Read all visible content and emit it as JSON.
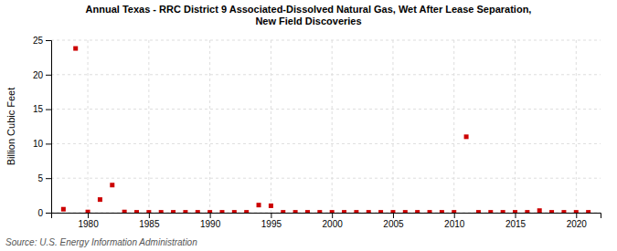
{
  "chart_data": {
    "type": "scatter",
    "title": "Annual Texas - RRC District 9 Associated-Dissolved Natural Gas, Wet After Lease Separation,\nNew Field Discoveries",
    "ylabel": "Billion Cubic Feet",
    "source": "Source: U.S. Energy Information Administration",
    "color": "#cc0000",
    "marker": "square",
    "grid": true,
    "x": [
      1978,
      1979,
      1980,
      1981,
      1982,
      1983,
      1984,
      1985,
      1986,
      1987,
      1988,
      1989,
      1990,
      1991,
      1992,
      1993,
      1994,
      1995,
      1996,
      1997,
      1998,
      1999,
      2000,
      2001,
      2002,
      2003,
      2004,
      2005,
      2006,
      2007,
      2008,
      2009,
      2010,
      2011,
      2012,
      2013,
      2014,
      2015,
      2016,
      2017,
      2018,
      2019,
      2020,
      2021
    ],
    "values": [
      0.5,
      23.8,
      0.1,
      1.9,
      4.0,
      0.1,
      0.05,
      0.05,
      0.05,
      0.05,
      0.05,
      0.05,
      0.05,
      0.05,
      0.05,
      0.05,
      1.1,
      1.0,
      0.05,
      0.05,
      0.05,
      0.05,
      0.05,
      0.05,
      0.05,
      0.05,
      0.05,
      0.05,
      0.05,
      0.05,
      0.05,
      0.05,
      0.05,
      11.0,
      0.05,
      0.05,
      0.05,
      0.05,
      0.05,
      0.3,
      0.05,
      0.05,
      0.05,
      0.05
    ],
    "xlim": [
      1977,
      2022
    ],
    "ylim": [
      0,
      25
    ],
    "xticks": [
      1980,
      1985,
      1990,
      1995,
      2000,
      2005,
      2010,
      2015,
      2020
    ],
    "yticks": [
      0,
      5,
      10,
      15,
      20,
      25
    ]
  }
}
